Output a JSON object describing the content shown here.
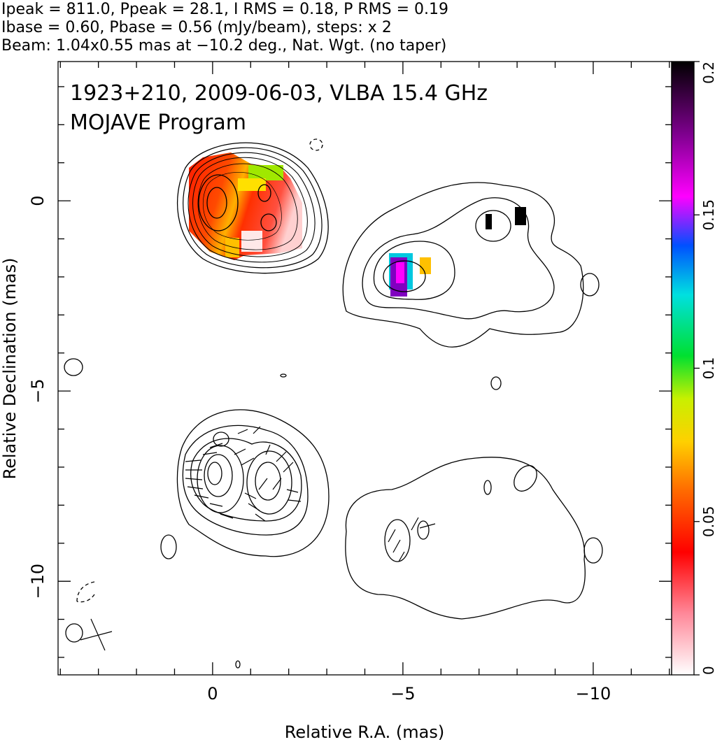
{
  "chart_data": {
    "type": "contour",
    "header": [
      "Ipeak = 811.0, Ppeak = 28.1, I RMS = 0.18, P RMS = 0.19",
      "Ibase = 0.60, Pbase = 0.56 (mJy/beam), steps: x 2",
      "Beam: 1.04x0.55 mas at −10.2 deg., Nat. Wgt. (no taper)"
    ],
    "title": "1923+210, 2009-06-03, VLBA 15.4 GHz",
    "subtitle": "MOJAVE Program",
    "xlabel": "Relative R.A. (mas)",
    "ylabel": "Relative Declination (mas)",
    "xlim": [
      4.06,
      -12.06
    ],
    "ylim": [
      -12.46,
      3.66
    ],
    "xticks": [
      0,
      {
        "value": -5,
        "label": "−5"
      },
      {
        "value": -10,
        "label": "−10"
      }
    ],
    "yticks": [
      0,
      {
        "value": -5,
        "label": "−5"
      },
      {
        "value": -10,
        "label": "−10"
      }
    ],
    "xminorticks": [
      4,
      3,
      2,
      1,
      -1,
      -2,
      -3,
      -4,
      -6,
      -7,
      -8,
      -9,
      -11,
      -12
    ],
    "yminorticks": [
      3,
      2,
      1,
      -1,
      -2,
      -3,
      -4,
      -6,
      -7,
      -8,
      -9,
      -11,
      -12
    ],
    "colorbar": {
      "lim": [
        0,
        0.2
      ],
      "ticks": [
        0,
        0.05,
        0.1,
        0.15,
        0.2
      ]
    }
  }
}
